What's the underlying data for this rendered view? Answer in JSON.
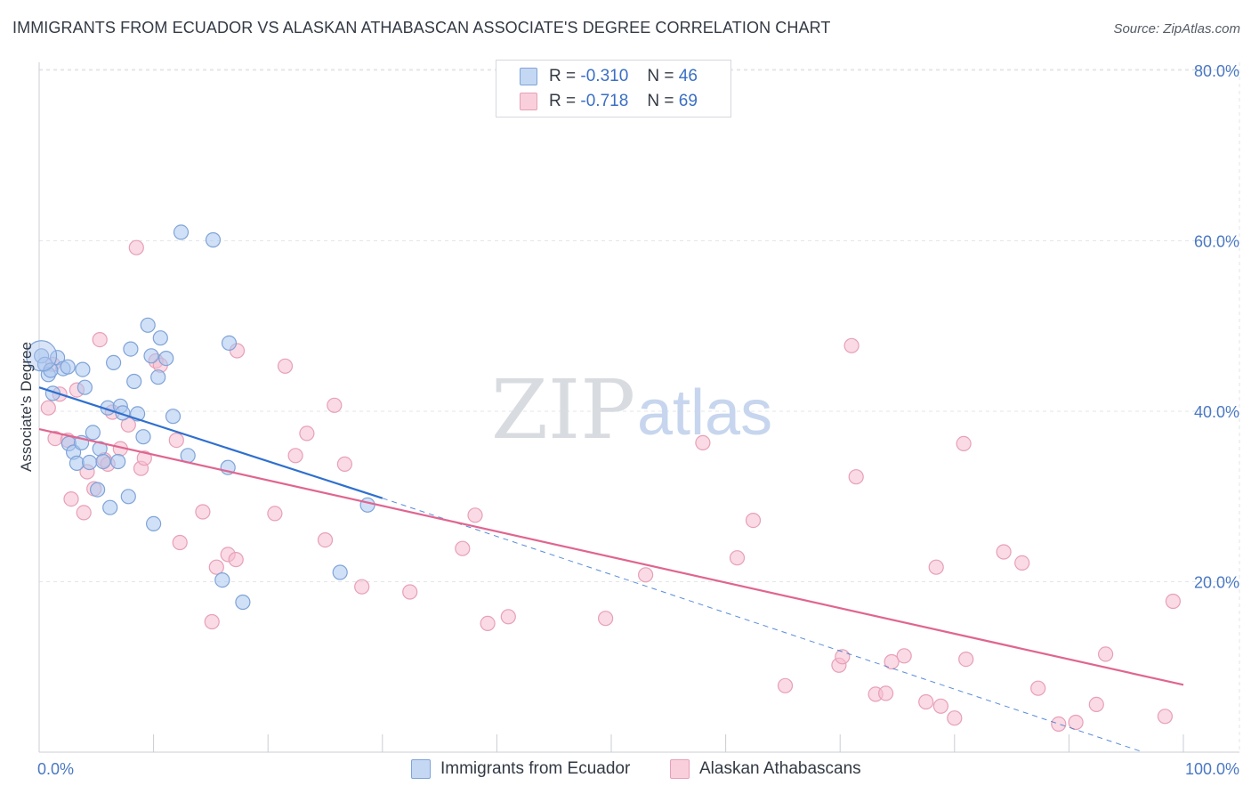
{
  "title": "IMMIGRANTS FROM ECUADOR VS ALASKAN ATHABASCAN ASSOCIATE'S DEGREE CORRELATION CHART",
  "source": "Source: ZipAtlas.com",
  "watermark": {
    "zip": "ZIP",
    "atlas": "atlas"
  },
  "legend": {
    "rows": [
      {
        "r_label": "R =",
        "r_value": "-0.310",
        "n_label": "N =",
        "n_value": "46"
      },
      {
        "r_label": "R =",
        "r_value": "-0.718",
        "n_label": "N =",
        "n_value": "69"
      }
    ]
  },
  "colors": {
    "blue_fill": "#aac6ee",
    "blue_stroke": "#7fa3d8",
    "blue_line": "#2f6fcf",
    "pink_fill": "#f6bccd",
    "pink_stroke": "#e7a0b7",
    "pink_line": "#e06590",
    "axis_text": "#4a78c4",
    "grid": "#e3e6ea"
  },
  "chart_data": {
    "type": "scatter",
    "title": "IMMIGRANTS FROM ECUADOR VS ALASKAN ATHABASCAN ASSOCIATE'S DEGREE CORRELATION CHART",
    "xlabel": "",
    "ylabel": "Associate's Degree",
    "xlim": [
      0,
      100
    ],
    "ylim": [
      0,
      82
    ],
    "x_tick_labels": [
      "0.0%",
      "100.0%"
    ],
    "y_ticks": [
      20,
      40,
      60,
      80
    ],
    "y_tick_labels": [
      "20.0%",
      "40.0%",
      "60.0%",
      "80.0%"
    ],
    "grid": true,
    "legend_position": "top-center",
    "series": [
      {
        "name": "Immigrants from Ecuador",
        "color": "blue",
        "R": -0.31,
        "N": 46,
        "trend": {
          "x0": 0,
          "y0": 42.8,
          "x1": 30,
          "y1": 29.8,
          "dashed_to_x": 96.5,
          "dashed_to_y": 0.0
        },
        "points": [
          [
            0.2,
            46.5
          ],
          [
            0.5,
            45.5
          ],
          [
            0.8,
            44.3
          ],
          [
            1.2,
            42.1
          ],
          [
            1.6,
            46.3
          ],
          [
            2.1,
            45.0
          ],
          [
            1.0,
            44.8
          ],
          [
            2.5,
            45.2
          ],
          [
            3.8,
            44.9
          ],
          [
            4.0,
            42.8
          ],
          [
            2.6,
            36.2
          ],
          [
            3.0,
            35.2
          ],
          [
            3.3,
            33.9
          ],
          [
            3.7,
            36.3
          ],
          [
            4.4,
            34.0
          ],
          [
            4.7,
            37.5
          ],
          [
            5.1,
            30.8
          ],
          [
            5.3,
            35.6
          ],
          [
            5.6,
            34.1
          ],
          [
            6.0,
            40.4
          ],
          [
            6.2,
            28.7
          ],
          [
            6.5,
            45.7
          ],
          [
            6.9,
            34.1
          ],
          [
            7.1,
            40.6
          ],
          [
            7.3,
            39.8
          ],
          [
            7.8,
            30.0
          ],
          [
            8.0,
            47.3
          ],
          [
            8.3,
            43.5
          ],
          [
            8.6,
            39.7
          ],
          [
            9.1,
            37.0
          ],
          [
            9.5,
            50.1
          ],
          [
            9.8,
            46.5
          ],
          [
            10.0,
            26.8
          ],
          [
            10.4,
            44.0
          ],
          [
            10.6,
            48.6
          ],
          [
            11.1,
            46.2
          ],
          [
            11.7,
            39.4
          ],
          [
            12.4,
            61.0
          ],
          [
            13.0,
            34.8
          ],
          [
            15.2,
            60.1
          ],
          [
            16.0,
            20.2
          ],
          [
            16.5,
            33.4
          ],
          [
            16.6,
            48.0
          ],
          [
            17.8,
            17.6
          ],
          [
            26.3,
            21.1
          ],
          [
            28.7,
            29.0
          ]
        ]
      },
      {
        "name": "Alaskan Athabascans",
        "color": "pink",
        "R": -0.718,
        "N": 69,
        "trend": {
          "x0": 0,
          "y0": 37.9,
          "x1": 100,
          "y1": 7.9
        },
        "points": [
          [
            0.8,
            40.4
          ],
          [
            1.2,
            45.5
          ],
          [
            1.4,
            36.8
          ],
          [
            1.8,
            42.0
          ],
          [
            2.5,
            36.6
          ],
          [
            2.8,
            29.7
          ],
          [
            3.3,
            42.5
          ],
          [
            3.9,
            28.1
          ],
          [
            4.2,
            32.9
          ],
          [
            4.8,
            30.9
          ],
          [
            5.3,
            48.4
          ],
          [
            5.7,
            34.3
          ],
          [
            6.0,
            33.8
          ],
          [
            6.4,
            39.9
          ],
          [
            7.1,
            35.6
          ],
          [
            7.8,
            38.4
          ],
          [
            8.5,
            59.2
          ],
          [
            8.9,
            33.3
          ],
          [
            9.2,
            34.5
          ],
          [
            10.2,
            45.9
          ],
          [
            10.6,
            45.4
          ],
          [
            12.0,
            36.6
          ],
          [
            12.3,
            24.6
          ],
          [
            14.3,
            28.2
          ],
          [
            15.1,
            15.3
          ],
          [
            15.5,
            21.7
          ],
          [
            16.5,
            23.2
          ],
          [
            17.2,
            22.6
          ],
          [
            17.3,
            47.1
          ],
          [
            20.6,
            28.0
          ],
          [
            21.5,
            45.3
          ],
          [
            22.4,
            34.8
          ],
          [
            23.4,
            37.4
          ],
          [
            25.0,
            24.9
          ],
          [
            25.8,
            40.7
          ],
          [
            26.7,
            33.8
          ],
          [
            28.2,
            19.4
          ],
          [
            32.4,
            18.8
          ],
          [
            37.0,
            23.9
          ],
          [
            38.1,
            27.8
          ],
          [
            39.2,
            15.1
          ],
          [
            41.0,
            15.9
          ],
          [
            49.5,
            15.7
          ],
          [
            53.0,
            20.8
          ],
          [
            58.0,
            36.3
          ],
          [
            61.0,
            22.8
          ],
          [
            62.4,
            27.2
          ],
          [
            65.2,
            7.8
          ],
          [
            69.9,
            10.2
          ],
          [
            70.2,
            11.2
          ],
          [
            71.0,
            47.7
          ],
          [
            71.4,
            32.3
          ],
          [
            73.1,
            6.8
          ],
          [
            74.0,
            6.9
          ],
          [
            74.5,
            10.6
          ],
          [
            75.6,
            11.3
          ],
          [
            77.5,
            5.9
          ],
          [
            78.4,
            21.7
          ],
          [
            78.8,
            5.4
          ],
          [
            80.0,
            4.0
          ],
          [
            80.8,
            36.2
          ],
          [
            81.0,
            10.9
          ],
          [
            84.3,
            23.5
          ],
          [
            85.9,
            22.2
          ],
          [
            87.3,
            7.5
          ],
          [
            89.1,
            3.3
          ],
          [
            90.6,
            3.5
          ],
          [
            92.4,
            5.6
          ],
          [
            93.2,
            11.5
          ],
          [
            98.4,
            4.2
          ],
          [
            99.1,
            17.7
          ]
        ]
      }
    ]
  },
  "bottom_legend": [
    {
      "label": "Immigrants from Ecuador",
      "color": "blue"
    },
    {
      "label": "Alaskan Athabascans",
      "color": "pink"
    }
  ]
}
